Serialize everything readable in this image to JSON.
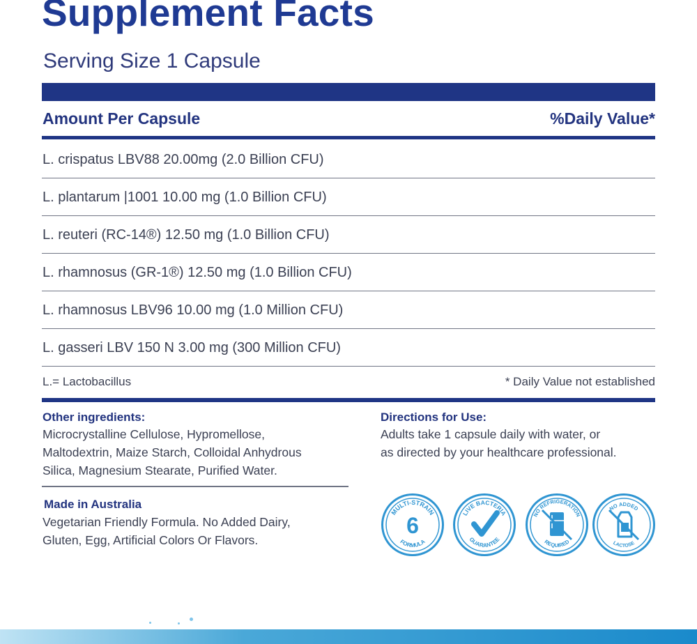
{
  "title": "Supplement Facts",
  "serving_size": "Serving Size 1 Capsule",
  "header": {
    "amount_label": "Amount Per Capsule",
    "daily_value_label": "%Daily Value*"
  },
  "ingredients": [
    "L. crispatus LBV88 20.00mg (2.0 Billion CFU)",
    "L. plantarum |1001 10.00 mg (1.0 Billion CFU)",
    "L. reuteri (RC-14®)  12.50 mg (1.0 Billion CFU)",
    "L. rhamnosus (GR-1®) 12.50 mg (1.0 Billion CFU)",
    "L. rhamnosus LBV96 10.00 mg (1.0 Million CFU)",
    "L. gasseri LBV 150 N 3.00 mg (300 Million CFU)"
  ],
  "footnotes": {
    "abbreviation": "L.= Lactobacillus",
    "daily_value_note": "* Daily Value not established"
  },
  "other_ingredients": {
    "heading": "Other ingredients:",
    "lines": [
      "Microcrystalline Cellulose, Hypromellose,",
      "Maltodextrin, Maize Starch, Colloidal Anhydrous",
      "Silica, Magnesium Stearate, Purified Water."
    ]
  },
  "directions": {
    "heading": "Directions for Use:",
    "lines": [
      "Adults take 1 capsule daily with water, or",
      "as directed by your healthcare professional."
    ]
  },
  "made_in": {
    "heading": "Made in Australia",
    "lines": [
      "Vegetarian Friendly Formula. No Added Dairy,",
      "Gluten, Egg, Artificial Colors Or Flavors."
    ]
  },
  "badges": [
    {
      "icon": "multi-strain-icon",
      "top_text": "MULTI-STRAIN",
      "center_text": "6",
      "bottom_text": "FORMULA"
    },
    {
      "icon": "checkmark-icon",
      "top_text": "LIVE BACTERIA",
      "bottom_text": "GUARANTEE"
    },
    {
      "icon": "refrigerator-icon",
      "top_text": "NO REFRIGERATION",
      "bottom_text": "REQUIRED"
    },
    {
      "icon": "milk-carton-icon",
      "top_text": "NO ADDED",
      "bottom_text": "LACTOSE"
    }
  ],
  "colors": {
    "brand_navy": "#1f3585",
    "badge_blue": "#2f95d2",
    "text": "#3a3f52"
  }
}
